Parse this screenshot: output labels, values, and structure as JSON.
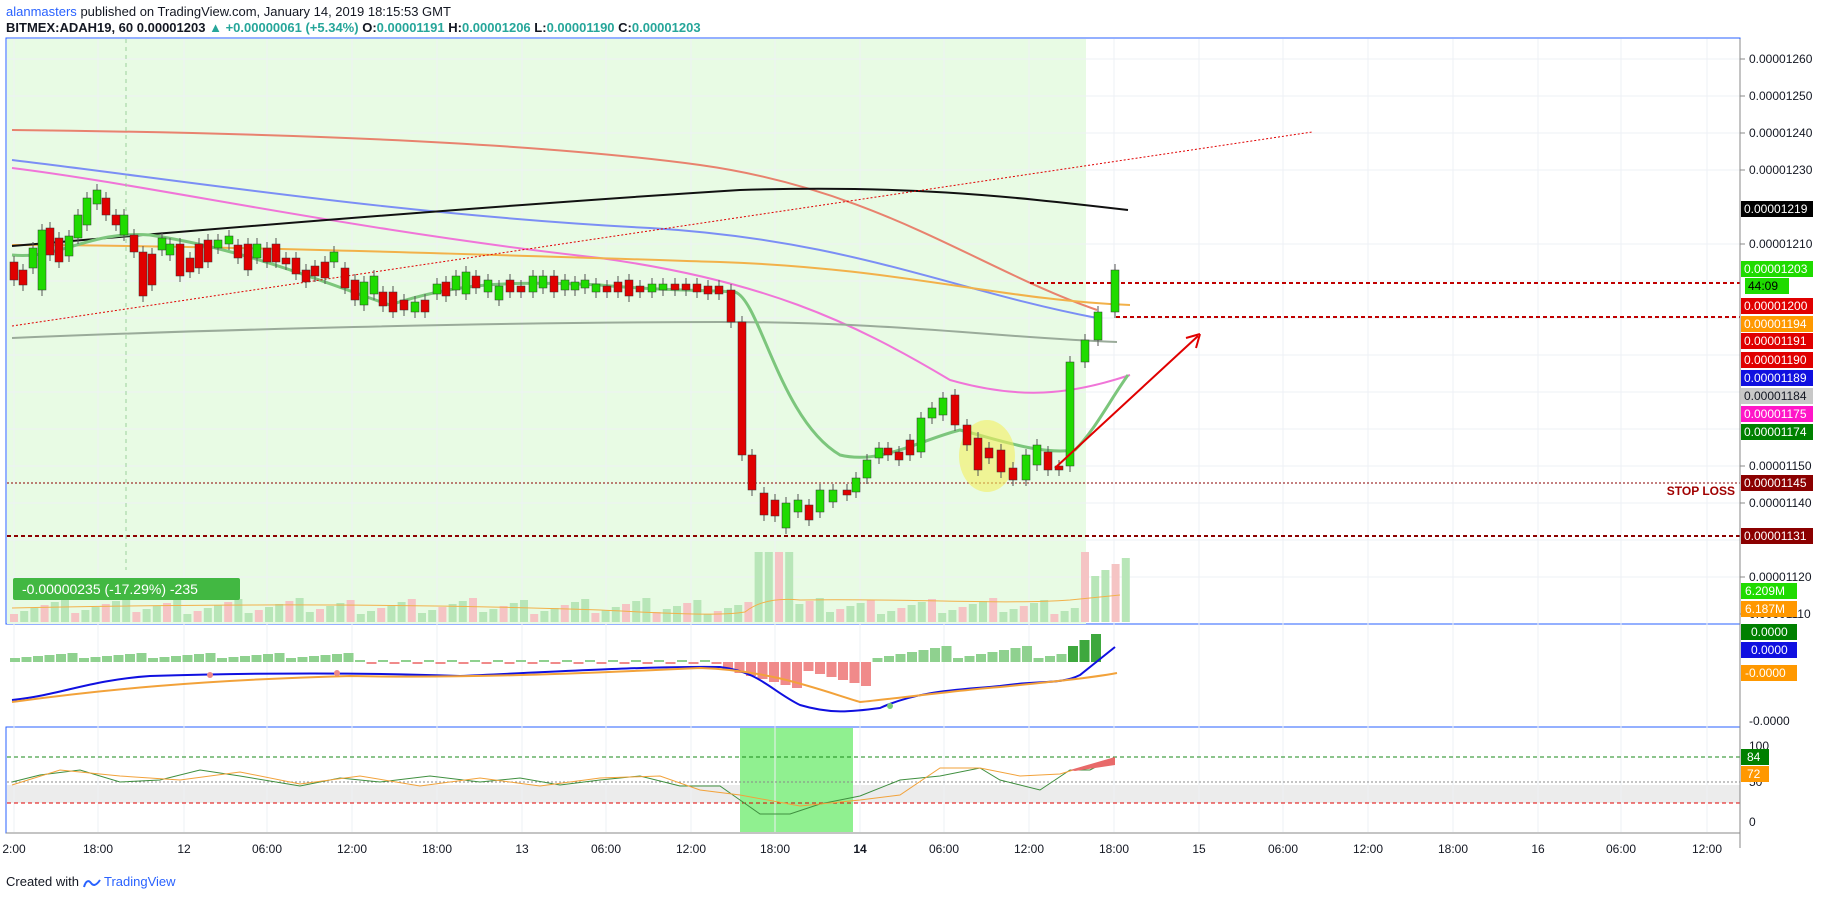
{
  "header": {
    "author": "alanmasters",
    "published_text": "published on TradingView.com, January 14, 2019 18:15:53 GMT"
  },
  "symbol_line": {
    "symbol": "BITMEX:ADAH19, 60",
    "price": "0.00001203",
    "change": "+0.00000061 (+5.34%)",
    "o_label": "O:",
    "o": "0.00001191",
    "h_label": "H:",
    "h": "0.00001206",
    "l_label": "L:",
    "l": "0.00001190",
    "c_label": "C:",
    "c": "0.00001203"
  },
  "price_axis": {
    "ticks": [
      "0.00001260",
      "0.00001250",
      "0.00001240",
      "0.00001230",
      "0.00001210",
      "0.00001150",
      "0.00001140",
      "0.00001120",
      "0.00001110"
    ],
    "markers": [
      {
        "label": "0.00001219",
        "bg": "#000000",
        "fg": "#ffffff"
      },
      {
        "label": "0.00001203",
        "bg": "#1fdb00",
        "fg": "#ffffff"
      },
      {
        "label": "44:09",
        "bg": "#1fdb00",
        "fg": "#000000"
      },
      {
        "label": "0.00001200",
        "bg": "#e00000",
        "fg": "#ffffff"
      },
      {
        "label": "0.00001194",
        "bg": "#ff9800",
        "fg": "#ffffff"
      },
      {
        "label": "0.00001191",
        "bg": "#e00000",
        "fg": "#ffffff"
      },
      {
        "label": "0.00001190",
        "bg": "#e00000",
        "fg": "#ffffff"
      },
      {
        "label": "0.00001189",
        "bg": "#1010e0",
        "fg": "#ffffff"
      },
      {
        "label": "0.00001184",
        "bg": "#c8c8c8",
        "fg": "#131722"
      },
      {
        "label": "0.00001175",
        "bg": "#ff16c8",
        "fg": "#ffffff"
      },
      {
        "label": "0.00001174",
        "bg": "#008000",
        "fg": "#ffffff"
      },
      {
        "label": "0.00001145",
        "bg": "#8b0000",
        "fg": "#ffffff"
      },
      {
        "label": "0.00001131",
        "bg": "#8b0000",
        "fg": "#ffffff"
      }
    ],
    "volume_markers": [
      {
        "label": "6.209M",
        "bg": "#1fdb00",
        "fg": "#ffffff"
      },
      {
        "label": "6.187M",
        "bg": "#ff9800",
        "fg": "#ffffff"
      }
    ]
  },
  "annotations": {
    "stop_loss": "STOP LOSS",
    "measure": "-0.00000235 (-17.29%) -235"
  },
  "macd_axis": {
    "ticks": [
      "-0.0000"
    ],
    "markers": [
      {
        "label": "0.0000",
        "bg": "#008000",
        "fg": "#ffffff"
      },
      {
        "label": "0.0000",
        "bg": "#1010e0",
        "fg": "#ffffff"
      },
      {
        "label": "-0.0000",
        "bg": "#ff9800",
        "fg": "#ffffff"
      }
    ]
  },
  "stoch_axis": {
    "ticks": [
      "100",
      "50",
      "0"
    ],
    "markers": [
      {
        "label": "84",
        "bg": "#008000",
        "fg": "#ffffff"
      },
      {
        "label": "72",
        "bg": "#ff9800",
        "fg": "#ffffff"
      }
    ]
  },
  "time_axis": [
    "2:00",
    "18:00",
    "12",
    "06:00",
    "12:00",
    "18:00",
    "13",
    "06:00",
    "12:00",
    "18:00",
    "14",
    "06:00",
    "12:00",
    "18:00",
    "15",
    "06:00",
    "12:00",
    "18:00",
    "16",
    "06:00",
    "12:00"
  ],
  "colors": {
    "bull": "#1fdb00",
    "bear": "#e00000",
    "highlight_bg": "#e8fbe4",
    "stoch_highlight": "#90f090"
  },
  "footer": {
    "created_with": "Created with",
    "brand": "TradingView",
    "logo_icon": "tradingview-logo-icon"
  }
}
